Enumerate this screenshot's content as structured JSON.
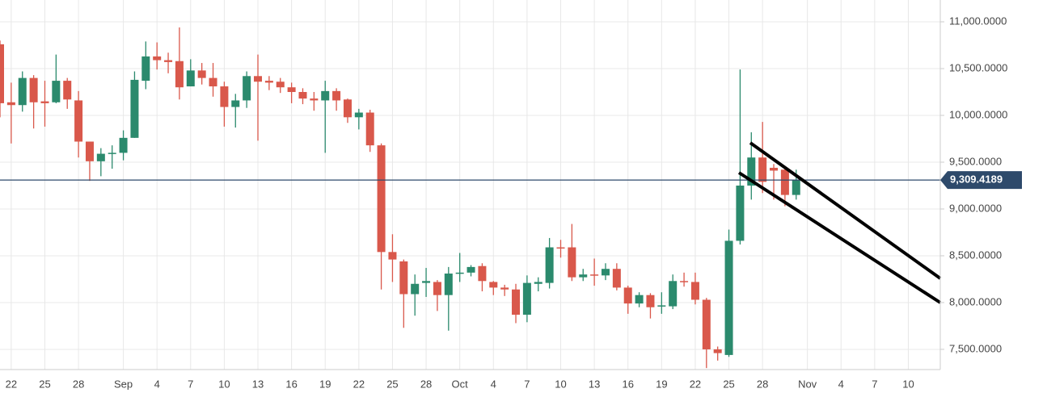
{
  "chart_data": {
    "type": "candlestick",
    "categories": [
      null,
      "22",
      null,
      null,
      "25",
      null,
      null,
      "28",
      null,
      null,
      null,
      "Sep",
      null,
      null,
      "4",
      null,
      null,
      "7",
      null,
      null,
      "10",
      null,
      null,
      "13",
      null,
      null,
      "16",
      null,
      null,
      "19",
      null,
      null,
      "22",
      null,
      null,
      "25",
      null,
      null,
      "28",
      null,
      null,
      "Oct",
      null,
      null,
      "4",
      null,
      null,
      "7",
      null,
      null,
      "10",
      null,
      null,
      "13",
      null,
      null,
      "16",
      null,
      null,
      "19",
      null,
      null,
      "22",
      null,
      null,
      "25",
      null,
      null,
      "28",
      null,
      null,
      null,
      "Nov",
      null,
      null,
      "4",
      null,
      null,
      "7",
      null,
      null,
      "10",
      null,
      null
    ],
    "open": [
      10760,
      10140,
      10110,
      10400,
      10150,
      10140,
      10370,
      10160,
      9720,
      9510,
      9590,
      9600,
      9760,
      10370,
      10630,
      10590,
      10580,
      10310,
      10480,
      10400,
      10310,
      10090,
      10160,
      10420,
      10370,
      10360,
      10300,
      10250,
      10180,
      10160,
      10260,
      10170,
      9980,
      10030,
      9680,
      8540,
      8440,
      8090,
      8210,
      8220,
      8080,
      8310,
      8320,
      8390,
      8220,
      8160,
      8140,
      7870,
      8200,
      8210,
      8590,
      8590,
      8270,
      8300,
      8290,
      8360,
      8160,
      7990,
      8080,
      7960,
      7960,
      8230,
      8220,
      8030,
      7500,
      7440,
      8660,
      9250,
      9550,
      9440,
      9420,
      9150,
      null,
      null,
      null,
      null,
      null,
      null,
      null,
      null,
      null,
      null,
      null,
      null
    ],
    "high": [
      10800,
      10350,
      10470,
      10430,
      10370,
      10650,
      10400,
      10260,
      9720,
      9650,
      9680,
      9840,
      10470,
      10790,
      10780,
      10670,
      10940,
      10600,
      10560,
      10560,
      10360,
      10230,
      10470,
      10650,
      10420,
      10400,
      10350,
      10290,
      10250,
      10370,
      10290,
      10180,
      10070,
      10060,
      9700,
      8730,
      8460,
      8300,
      8370,
      8240,
      8380,
      8530,
      8400,
      8420,
      8230,
      8190,
      8200,
      8290,
      8270,
      8690,
      8670,
      8840,
      8360,
      8470,
      8420,
      8420,
      8180,
      8110,
      8100,
      8110,
      8300,
      8320,
      8320,
      8050,
      7530,
      8780,
      10490,
      9820,
      9930,
      9480,
      9450,
      9420,
      null,
      null,
      null,
      null,
      null,
      null,
      null,
      null,
      null,
      null,
      null,
      null
    ],
    "low": [
      9980,
      9700,
      10040,
      9860,
      9880,
      10130,
      10070,
      9550,
      9300,
      9350,
      9430,
      9520,
      9760,
      10280,
      10490,
      10450,
      10170,
      10310,
      10330,
      10200,
      9880,
      9870,
      10080,
      9730,
      10270,
      10240,
      10130,
      10120,
      10050,
      9600,
      10050,
      9920,
      9850,
      9610,
      8140,
      8220,
      7730,
      7860,
      8060,
      7910,
      7700,
      8220,
      8280,
      8120,
      8080,
      8070,
      7780,
      7790,
      8120,
      8150,
      8480,
      8230,
      8230,
      8180,
      8240,
      8130,
      7880,
      7950,
      7830,
      7880,
      7930,
      8170,
      7980,
      7300,
      7380,
      7420,
      8620,
      9100,
      9170,
      9100,
      9030,
      9100,
      null,
      null,
      null,
      null,
      null,
      null,
      null,
      null,
      null,
      null,
      null,
      null
    ],
    "close": [
      10130,
      10110,
      10400,
      10140,
      10130,
      10370,
      10170,
      9720,
      9510,
      9590,
      9600,
      9760,
      10380,
      10630,
      10590,
      10570,
      10300,
      10480,
      10400,
      10310,
      10090,
      10160,
      10420,
      10360,
      10350,
      10300,
      10250,
      10180,
      10160,
      10260,
      10160,
      9980,
      10030,
      9680,
      8540,
      8460,
      8090,
      8200,
      8230,
      8080,
      8310,
      8320,
      8380,
      8230,
      8160,
      8140,
      7870,
      8210,
      8220,
      8590,
      8580,
      8270,
      8300,
      8290,
      8360,
      8160,
      7990,
      8080,
      7950,
      7970,
      8230,
      8220,
      8030,
      7500,
      7460,
      8660,
      9250,
      9550,
      9290,
      9410,
      9150,
      9310,
      null,
      null,
      null,
      null,
      null,
      null,
      null,
      null,
      null,
      null,
      null,
      null
    ],
    "colors": {
      "up": "#2b8a6d",
      "down": "#d9584b"
    },
    "ylim": [
      7284,
      11233
    ],
    "yticks": [
      {
        "value": 7500,
        "label": "7,500.0000"
      },
      {
        "value": 8000,
        "label": "8,000.0000"
      },
      {
        "value": 8500,
        "label": "8,500.0000"
      },
      {
        "value": 9000,
        "label": "9,000.0000"
      },
      {
        "value": 9500,
        "label": "9,500.0000"
      },
      {
        "value": 10000,
        "label": "10,000.0000"
      },
      {
        "value": 10500,
        "label": "10,500.0000"
      },
      {
        "value": 11000,
        "label": "11,000.0000"
      }
    ],
    "grid": true,
    "price_line": {
      "value": 9309.4189,
      "label": "9,309.4189",
      "color": "#2e4a6b"
    }
  }
}
